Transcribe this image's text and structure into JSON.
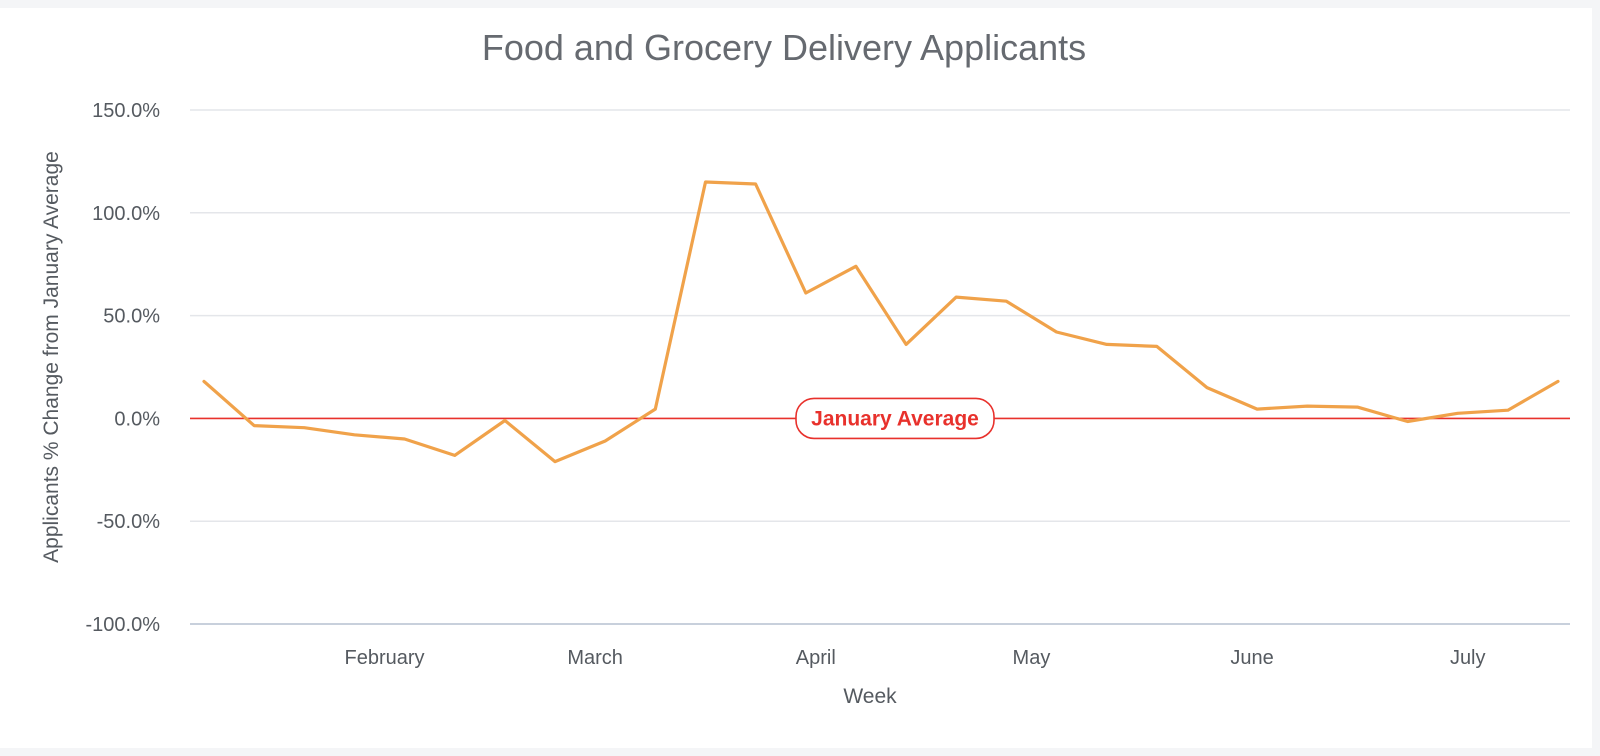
{
  "chart_data": {
    "type": "line",
    "title": "Food and Grocery Delivery Applicants",
    "xlabel": "Week",
    "ylabel": "Applicants % Change from January Average",
    "ylim": [
      -100,
      150
    ],
    "y_ticks": [
      150,
      100,
      50,
      0,
      -50,
      -100
    ],
    "y_tick_labels": [
      "150.0%",
      "100.0%",
      "50.0%",
      "0.0%",
      "-50.0%",
      "-100.0%"
    ],
    "x_tick_labels": [
      {
        "label": "February",
        "week": 3.6
      },
      {
        "label": "March",
        "week": 7.8
      },
      {
        "label": "April",
        "week": 12.2
      },
      {
        "label": "May",
        "week": 16.5
      },
      {
        "label": "June",
        "week": 20.9
      },
      {
        "label": "July",
        "week": 25.2
      }
    ],
    "grid": true,
    "series": [
      {
        "color": "#f0a24a",
        "values": [
          18,
          -3.5,
          -4.5,
          -8,
          -10,
          -18,
          -1,
          -21,
          -11,
          4.5,
          115,
          114,
          61,
          74,
          36,
          59,
          57,
          42,
          36,
          35,
          15,
          4.5,
          6,
          5.5,
          -1.5,
          2.5,
          4,
          18
        ]
      }
    ],
    "reference_line": {
      "value": 0,
      "label": "January Average",
      "color": "#e8312c"
    }
  }
}
